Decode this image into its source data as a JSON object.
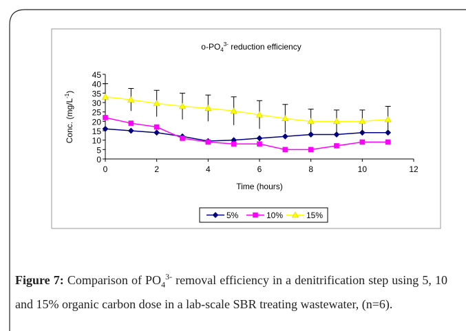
{
  "chart_data": {
    "type": "line",
    "title_parts": [
      "o-PO",
      "4",
      "3-",
      " reduction efficiency"
    ],
    "xlabel": "Time (hours)",
    "ylabel_parts": [
      "Conc. (mg/L",
      "-1",
      ")"
    ],
    "x": [
      0,
      1,
      2,
      3,
      4,
      5,
      6,
      7,
      8,
      9,
      10,
      11
    ],
    "series": [
      {
        "name": "5%",
        "color": "#000080",
        "marker": "diamond",
        "values": [
          16,
          15,
          14,
          12,
          9.5,
          10,
          11,
          12,
          13,
          13,
          14,
          14
        ]
      },
      {
        "name": "10%",
        "color": "#ff00ff",
        "marker": "square",
        "values": [
          22,
          19,
          17,
          11,
          9,
          8,
          8,
          5,
          5,
          7,
          9,
          9
        ]
      },
      {
        "name": "15%",
        "color": "#ffff00",
        "marker": "triangle",
        "values": [
          33,
          31.5,
          29.5,
          28,
          27,
          25.5,
          23.5,
          21.5,
          20,
          20,
          20,
          21
        ],
        "errors": [
          7,
          6,
          7,
          7,
          7,
          7.5,
          7.5,
          7.5,
          6.5,
          6,
          6,
          7
        ]
      }
    ],
    "xlim": [
      0,
      12
    ],
    "xticks": [
      0,
      2,
      4,
      6,
      8,
      10,
      12
    ],
    "ylim": [
      0,
      45
    ],
    "yticks": [
      0,
      5,
      10,
      15,
      20,
      25,
      30,
      35,
      40,
      45
    ],
    "legend": "bottom"
  },
  "caption": {
    "label": "Figure 7:",
    "text_parts": [
      " Comparison of PO",
      "4",
      "3-",
      " removal efficiency in a denitrification step using 5, 10 and 15% organic carbon dose in a lab-scale SBR treating wastewater, (n=6)."
    ]
  }
}
